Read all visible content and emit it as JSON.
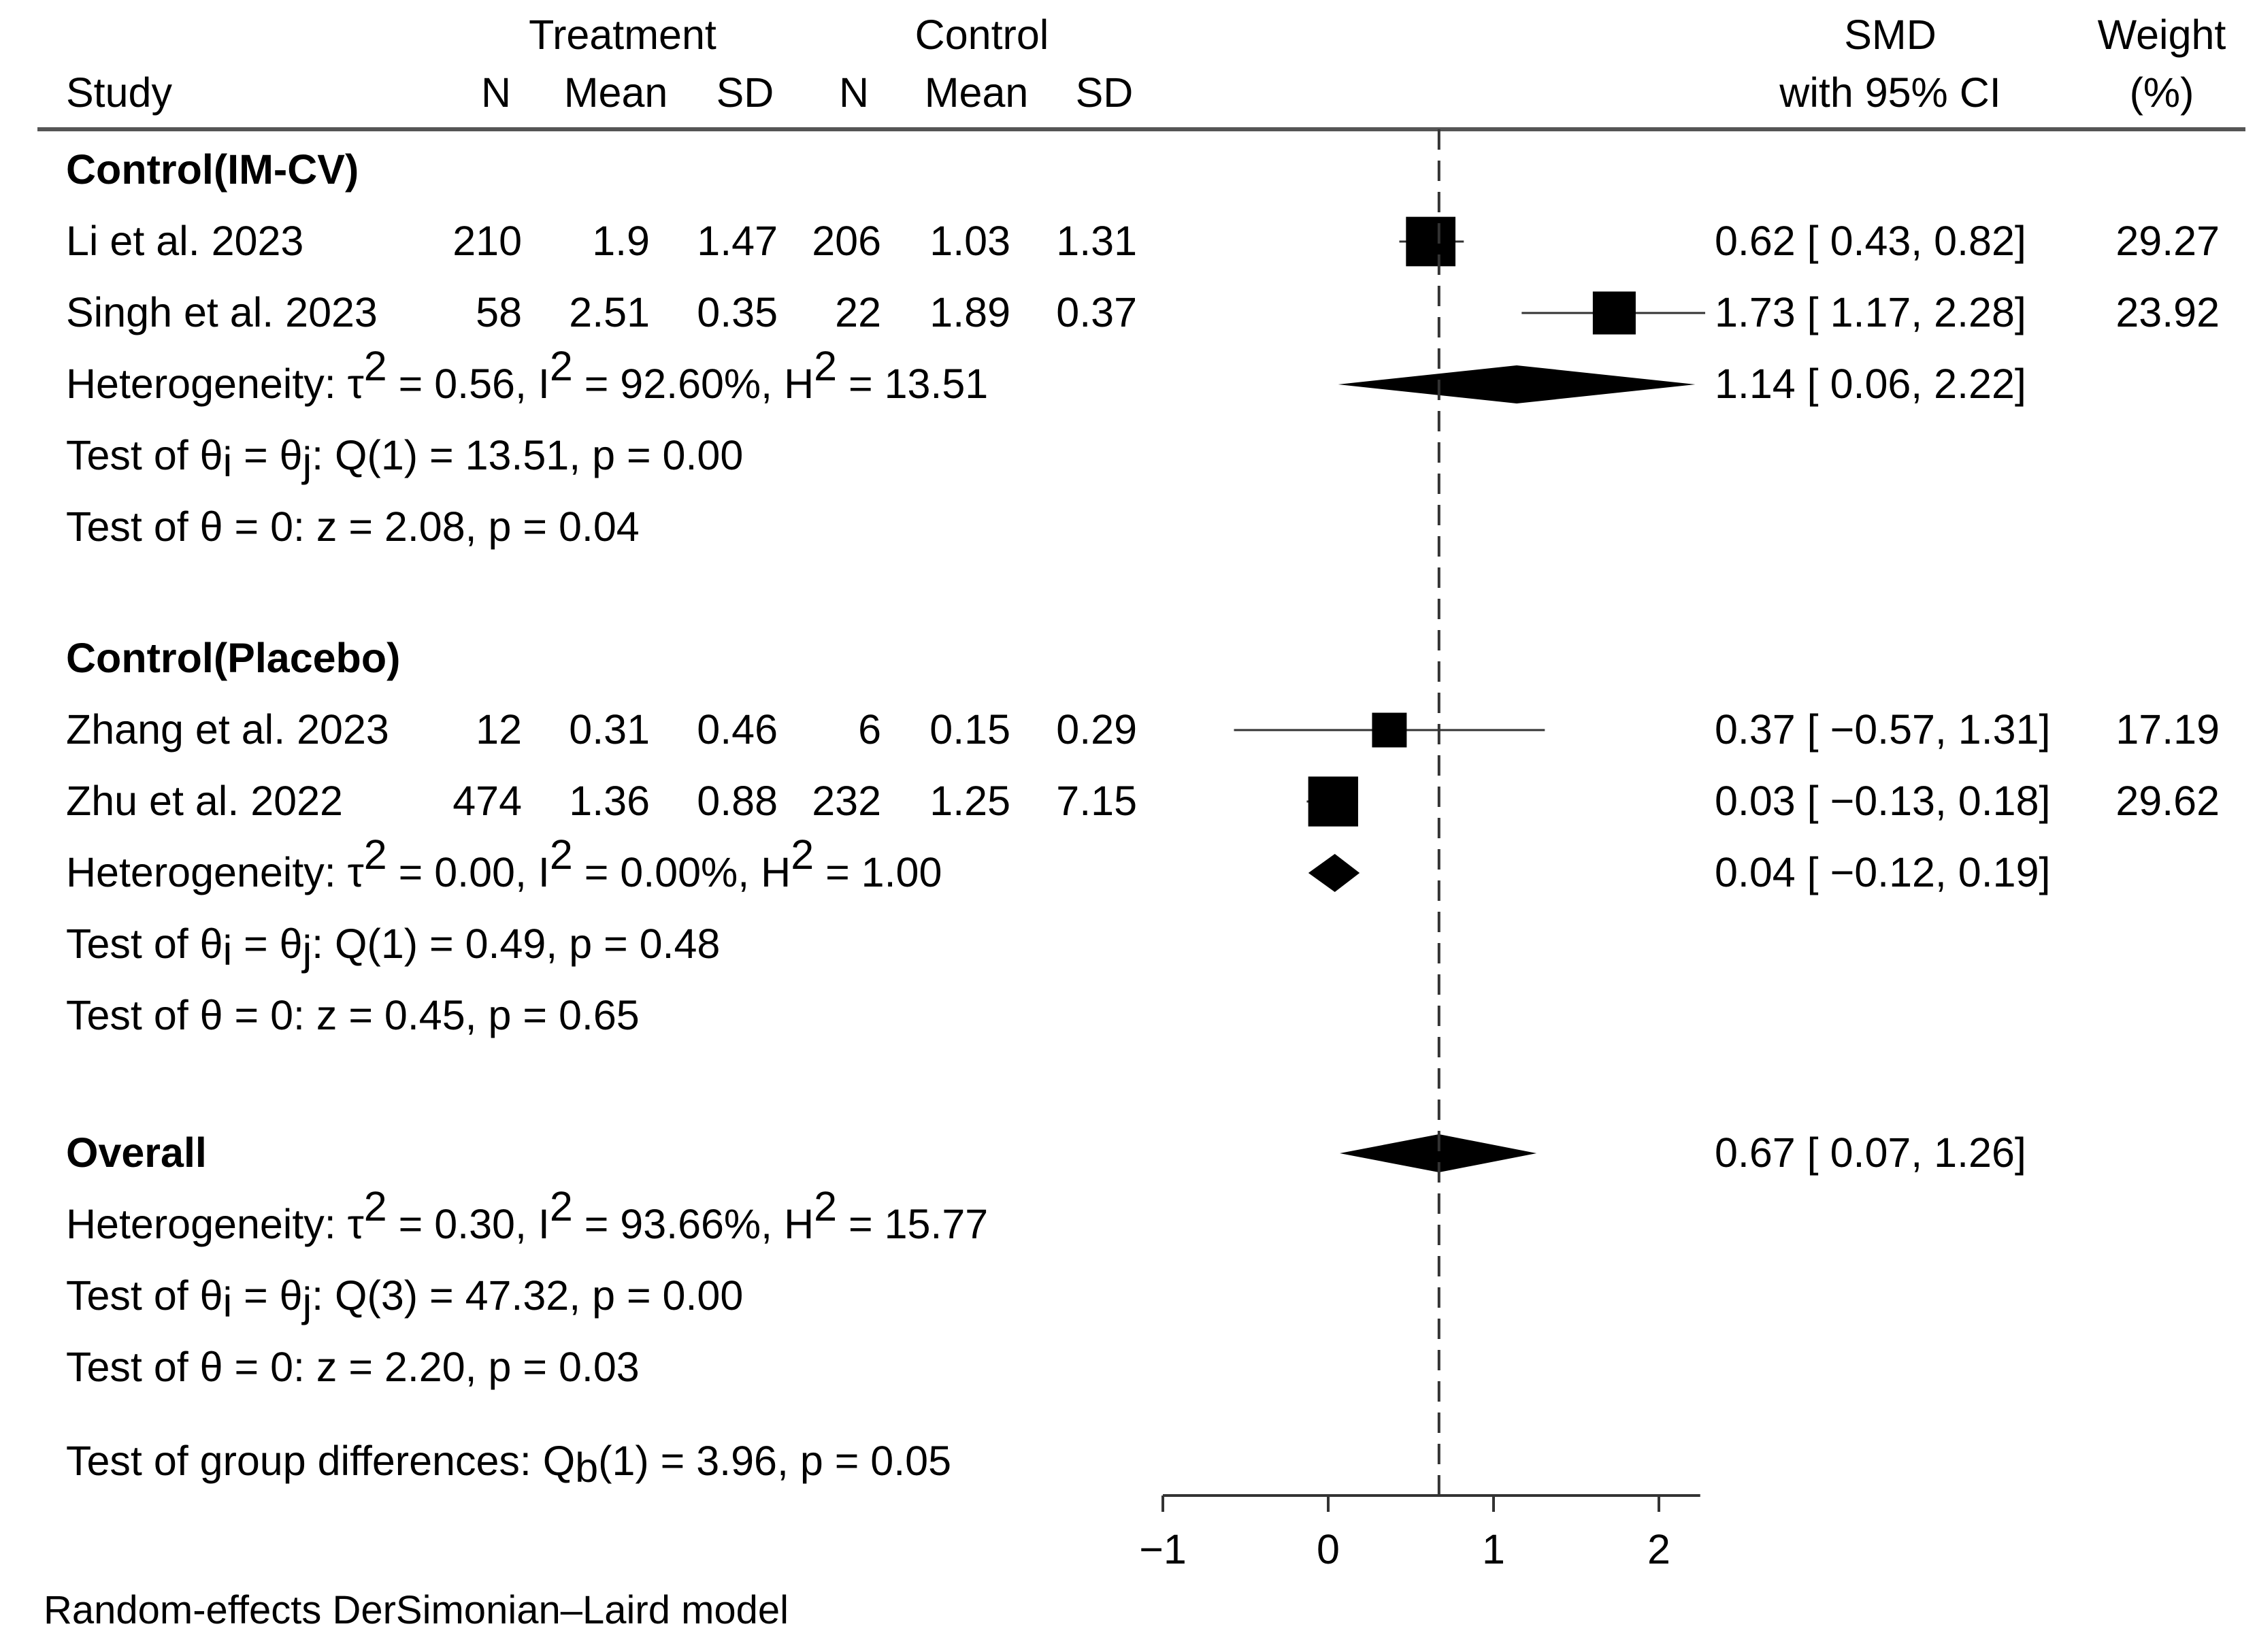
{
  "chart_data": {
    "type": "forest",
    "model_note": "Random-effects DerSimonian–Laird model",
    "columns": {
      "treatment_group": "Treatment",
      "control_group": "Control",
      "study": "Study",
      "n": "N",
      "mean": "Mean",
      "sd": "SD",
      "effect_top": "SMD",
      "effect_bottom": "with 95% CI",
      "weight_top": "Weight",
      "weight_bottom": "(%)"
    },
    "x_axis": {
      "range": [
        -1,
        2.25
      ],
      "ticks": [
        -1,
        0,
        1,
        2
      ],
      "tick_labels": [
        "−1",
        "0",
        "1",
        "2"
      ],
      "reference_line": 0.67
    },
    "rows": [
      {
        "kind": "group",
        "label": "Control(IM-CV)"
      },
      {
        "kind": "study",
        "label": "Li et al. 2023",
        "t_n": "210",
        "t_mean": "1.9",
        "t_sd": "1.47",
        "c_n": "206",
        "c_mean": "1.03",
        "c_sd": "1.31",
        "smd": 0.62,
        "lo": 0.43,
        "hi": 0.82,
        "weight": 29.27,
        "ci_text": "0.62 [  0.43,  0.82]",
        "weight_text": "29.27"
      },
      {
        "kind": "study",
        "label": "Singh et al. 2023",
        "t_n": "58",
        "t_mean": "2.51",
        "t_sd": "0.35",
        "c_n": "22",
        "c_mean": "1.89",
        "c_sd": "0.37",
        "smd": 1.73,
        "lo": 1.17,
        "hi": 2.28,
        "weight": 23.92,
        "ci_text": "1.73 [  1.17,  2.28]",
        "weight_text": "23.92"
      },
      {
        "kind": "het",
        "label_pre": "Heterogeneity: τ",
        "tau_post": " = 0.56, I",
        "i_post": " = 92.60%, H",
        "h_post": " = 13.51",
        "sup": "2",
        "pooled": 1.14,
        "lo": 0.06,
        "hi": 2.22,
        "ci_text": "1.14 [  0.06,  2.22]"
      },
      {
        "kind": "test",
        "label_pre": "Test of θ",
        "sub1": "i",
        "mid": " = θ",
        "sub2": "j",
        "post": ": Q(1) = 13.51, p = 0.00"
      },
      {
        "kind": "text",
        "label": "Test of θ = 0: z = 2.08, p = 0.04"
      },
      {
        "kind": "group",
        "label": "Control(Placebo)"
      },
      {
        "kind": "study",
        "label": "Zhang et al. 2023",
        "t_n": "12",
        "t_mean": "0.31",
        "t_sd": "0.46",
        "c_n": "6",
        "c_mean": "0.15",
        "c_sd": "0.29",
        "smd": 0.37,
        "lo": -0.57,
        "hi": 1.31,
        "weight": 17.19,
        "ci_text": "0.37 [ −0.57,  1.31]",
        "weight_text": "17.19"
      },
      {
        "kind": "study",
        "label": "Zhu et al. 2022",
        "t_n": "474",
        "t_mean": "1.36",
        "t_sd": "0.88",
        "c_n": "232",
        "c_mean": "1.25",
        "c_sd": "7.15",
        "smd": 0.03,
        "lo": -0.13,
        "hi": 0.18,
        "weight": 29.62,
        "ci_text": "0.03 [ −0.13,  0.18]",
        "weight_text": "29.62"
      },
      {
        "kind": "het",
        "label_pre": "Heterogeneity: τ",
        "tau_post": " = 0.00, I",
        "i_post": " = 0.00%, H",
        "h_post": " = 1.00",
        "sup": "2",
        "pooled": 0.04,
        "lo": -0.12,
        "hi": 0.19,
        "ci_text": "0.04 [ −0.12,  0.19]"
      },
      {
        "kind": "test",
        "label_pre": "Test of θ",
        "sub1": "i",
        "mid": " = θ",
        "sub2": "j",
        "post": ": Q(1) = 0.49, p = 0.48"
      },
      {
        "kind": "text",
        "label": "Test of θ = 0: z = 0.45, p = 0.65"
      },
      {
        "kind": "group_overall",
        "label": "Overall",
        "pooled": 0.67,
        "lo": 0.07,
        "hi": 1.26,
        "ci_text": "0.67 [  0.07,  1.26]"
      },
      {
        "kind": "het",
        "label_pre": "Heterogeneity: τ",
        "tau_post": " = 0.30, I",
        "i_post": " = 93.66%, H",
        "h_post": " = 15.77",
        "sup": "2"
      },
      {
        "kind": "test",
        "label_pre": "Test of θ",
        "sub1": "i",
        "mid": " = θ",
        "sub2": "j",
        "post": ": Q(3) = 47.32, p = 0.00"
      },
      {
        "kind": "text",
        "label": "Test of θ = 0: z = 2.20, p = 0.03"
      },
      {
        "kind": "groupdiff",
        "label_pre": "Test of group differences: Q",
        "sub": "b",
        "post": "(1) = 3.96, p = 0.05"
      }
    ]
  }
}
